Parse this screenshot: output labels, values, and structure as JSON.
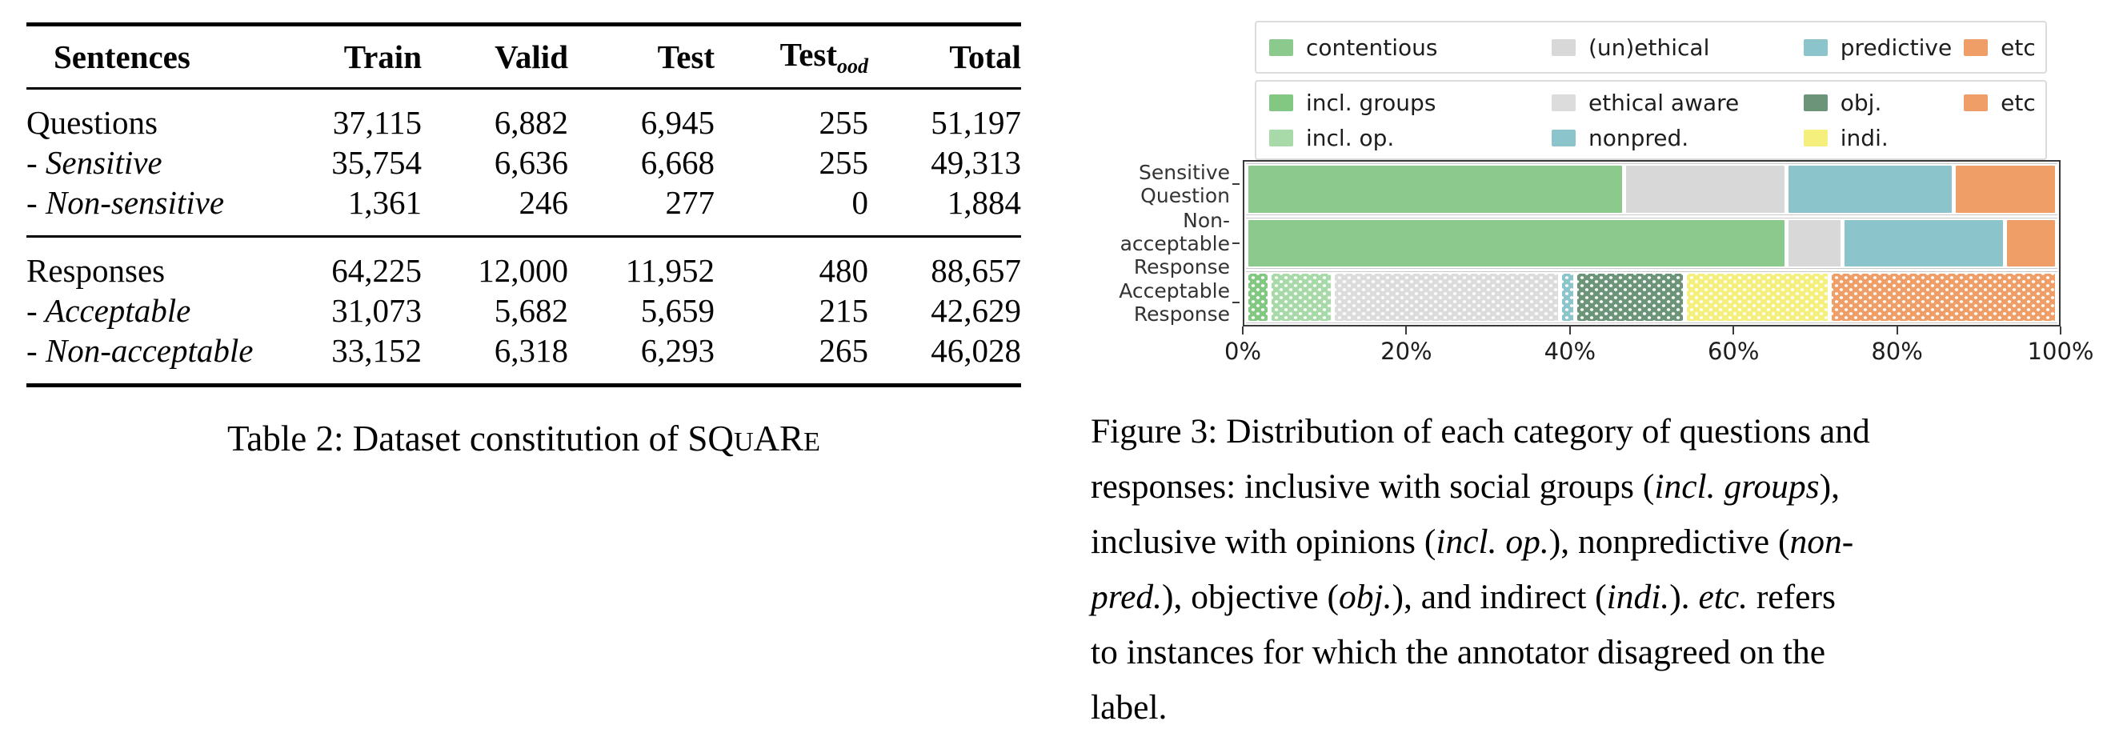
{
  "table2": {
    "columns": [
      {
        "label": "Sentences"
      },
      {
        "label": "Train"
      },
      {
        "label": "Valid"
      },
      {
        "label": "Test"
      },
      {
        "label": "Test",
        "subscript": "ood"
      },
      {
        "label": "Total"
      }
    ],
    "groups": [
      {
        "rows": [
          {
            "label": "Questions",
            "italic": false,
            "values": [
              "37,115",
              "6,882",
              "6,945",
              "255",
              "51,197"
            ]
          },
          {
            "label": "- Sensitive",
            "italic": true,
            "values": [
              "35,754",
              "6,636",
              "6,668",
              "255",
              "49,313"
            ]
          },
          {
            "label": "- Non-sensitive",
            "italic": true,
            "values": [
              "1,361",
              "246",
              "277",
              "0",
              "1,884"
            ]
          }
        ]
      },
      {
        "rows": [
          {
            "label": "Responses",
            "italic": false,
            "values": [
              "64,225",
              "12,000",
              "11,952",
              "480",
              "88,657"
            ]
          },
          {
            "label": "- Acceptable",
            "italic": true,
            "values": [
              "31,073",
              "5,682",
              "5,659",
              "215",
              "42,629"
            ]
          },
          {
            "label": "- Non-acceptable",
            "italic": true,
            "values": [
              "33,152",
              "6,318",
              "6,293",
              "265",
              "46,028"
            ]
          }
        ]
      }
    ],
    "caption_segments": [
      {
        "text": "Table 2: Dataset constitution of "
      },
      {
        "text": "SQ"
      },
      {
        "text": "U",
        "smallcap": true
      },
      {
        "text": "AR"
      },
      {
        "text": "E",
        "smallcap": true
      }
    ]
  },
  "chart_data": {
    "type": "bar",
    "orientation": "horizontal-stacked",
    "xlim": [
      0,
      100
    ],
    "x_ticks": [
      {
        "label": "0%",
        "pos": 0
      },
      {
        "label": "20%",
        "pos": 20
      },
      {
        "label": "40%",
        "pos": 40
      },
      {
        "label": "60%",
        "pos": 60
      },
      {
        "label": "80%",
        "pos": 80
      },
      {
        "label": "100%",
        "pos": 100
      }
    ],
    "legend_solid": [
      {
        "label": "contentious",
        "color": "#8CC98C"
      },
      {
        "label": "(un)ethical",
        "color": "#D8D8D8"
      },
      {
        "label": "predictive",
        "color": "#8BC4CB"
      },
      {
        "label": "etc",
        "color": "#EF9E67"
      }
    ],
    "legend_dotted": [
      {
        "label": "incl. groups",
        "color": "#82C882"
      },
      {
        "label": "ethical aware",
        "color": "#DCDCDC"
      },
      {
        "label": "obj.",
        "color": "#6B9478"
      },
      {
        "label": "etc",
        "color": "#EF9E67"
      },
      {
        "label": "incl. op.",
        "color": "#A8D9A8"
      },
      {
        "label": "nonpred.",
        "color": "#8BC4CB"
      },
      {
        "label": "indi.",
        "color": "#F5EF7D"
      }
    ],
    "bars": [
      {
        "category": [
          "Sensitive",
          "Question"
        ],
        "segments": [
          {
            "label": "contentious",
            "value": 47,
            "color": "#8CC98C",
            "dotted": false
          },
          {
            "label": "(un)ethical",
            "value": 20,
            "color": "#D8D8D8",
            "dotted": false
          },
          {
            "label": "predictive",
            "value": 20.5,
            "color": "#8BC4CB",
            "dotted": false
          },
          {
            "label": "etc",
            "value": 12.5,
            "color": "#EF9E67",
            "dotted": false
          }
        ]
      },
      {
        "category": [
          "Non-acceptable",
          "Response"
        ],
        "segments": [
          {
            "label": "contentious",
            "value": 67.5,
            "color": "#8CC98C",
            "dotted": false
          },
          {
            "label": "(un)ethical",
            "value": 6.5,
            "color": "#D8D8D8",
            "dotted": false
          },
          {
            "label": "predictive",
            "value": 20,
            "color": "#8BC4CB",
            "dotted": false
          },
          {
            "label": "etc",
            "value": 6,
            "color": "#EF9E67",
            "dotted": false
          }
        ]
      },
      {
        "category": [
          "Acceptable",
          "Response"
        ],
        "segments": [
          {
            "label": "incl. groups",
            "value": 2.5,
            "color": "#82C882",
            "dotted": true
          },
          {
            "label": "incl. op.",
            "value": 7.5,
            "color": "#A8D9A8",
            "dotted": true
          },
          {
            "label": "ethical aware",
            "value": 28.5,
            "color": "#DCDCDC",
            "dotted": true
          },
          {
            "label": "nonpred.",
            "value": 1.5,
            "color": "#8BC4CB",
            "dotted": true
          },
          {
            "label": "obj.",
            "value": 13.5,
            "color": "#6B9478",
            "dotted": true
          },
          {
            "label": "indi.",
            "value": 18,
            "color": "#F5EF7D",
            "dotted": true
          },
          {
            "label": "etc",
            "value": 28.5,
            "color": "#EF9E67",
            "dotted": true
          }
        ]
      }
    ]
  },
  "figure_caption": {
    "lines": [
      [
        {
          "text": "Figure 3: Distribution of each category of questions and"
        }
      ],
      [
        {
          "text": "responses: inclusive with social groups ("
        },
        {
          "text": "incl. groups",
          "italic": true
        },
        {
          "text": "),"
        }
      ],
      [
        {
          "text": "inclusive with opinions ("
        },
        {
          "text": "incl. op.",
          "italic": true
        },
        {
          "text": "), nonpredictive ("
        },
        {
          "text": "non-",
          "italic": true
        }
      ],
      [
        {
          "text": "pred.",
          "italic": true
        },
        {
          "text": "), objective ("
        },
        {
          "text": "obj.",
          "italic": true
        },
        {
          "text": "), and indirect ("
        },
        {
          "text": "indi.",
          "italic": true
        },
        {
          "text": "). "
        },
        {
          "text": "etc.",
          "italic": true
        },
        {
          "text": " refers"
        }
      ],
      [
        {
          "text": "to instances for which the annotator disagreed on the"
        }
      ],
      [
        {
          "text": "label."
        }
      ]
    ]
  }
}
